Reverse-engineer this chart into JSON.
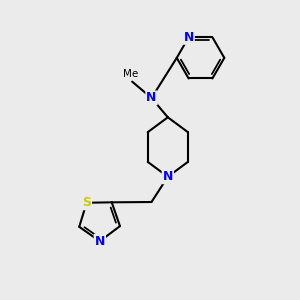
{
  "bg_color": "#ebebeb",
  "atom_color_N": "#0000FF",
  "atom_color_S": "#CCCC00",
  "bond_color": "#000000",
  "bond_width": 1.5,
  "font_size_atom": 8.5,
  "figsize": [
    3.0,
    3.0
  ],
  "dpi": 100,
  "xlim": [
    0,
    10
  ],
  "ylim": [
    0,
    10
  ]
}
